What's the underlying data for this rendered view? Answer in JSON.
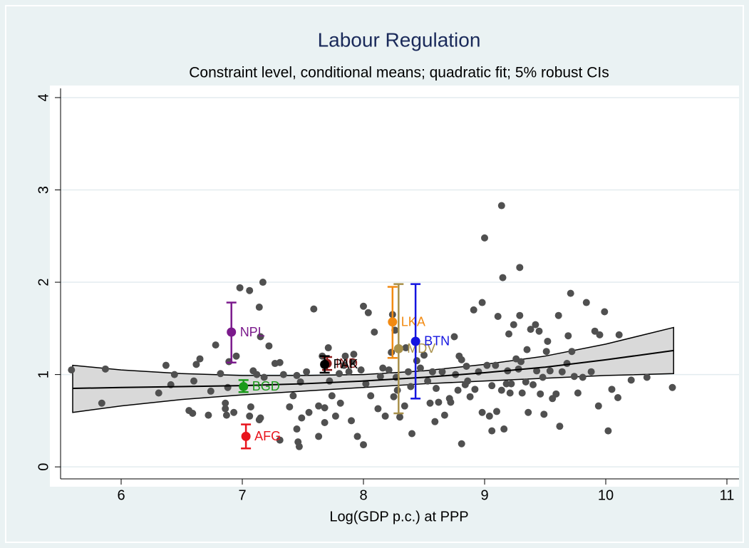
{
  "chart_data": {
    "type": "scatter",
    "title": "Labour Regulation",
    "subtitle": "Constraint level, conditional means; quadratic fit; 5% robust CIs",
    "x_label": "Log(GDP p.c.) at PPP",
    "xlim": [
      5.5,
      11.1
    ],
    "xticks": [
      6,
      7,
      8,
      9,
      10,
      11
    ],
    "ylim": [
      -0.13,
      4.1
    ],
    "yticks": [
      0,
      1,
      2,
      3,
      4
    ],
    "grid": true,
    "color": "#505050",
    "x": [
      5.59,
      5.87,
      5.84,
      6.31,
      6.37,
      6.41,
      6.44,
      6.56,
      6.59,
      6.6,
      6.62,
      6.65,
      6.72,
      6.74,
      6.78,
      6.82,
      6.86,
      6.86,
      6.87,
      6.88,
      6.89,
      6.95,
      6.93,
      6.98,
      7.06,
      7.07,
      7.06,
      7.09,
      7.12,
      7.14,
      7.15,
      7.17,
      7.14,
      7.15,
      7.18,
      7.22,
      7.27,
      7.31,
      7.31,
      7.34,
      7.39,
      7.42,
      7.45,
      7.45,
      7.46,
      7.47,
      7.48,
      7.49,
      7.53,
      7.55,
      7.59,
      7.63,
      7.63,
      7.68,
      7.66,
      7.68,
      7.71,
      7.72,
      7.74,
      7.77,
      7.8,
      7.81,
      7.84,
      7.85,
      7.88,
      7.9,
      7.91,
      7.92,
      7.95,
      7.98,
      8.0,
      8.0,
      8.02,
      8.04,
      8.06,
      8.09,
      8.12,
      8.14,
      8.16,
      8.18,
      8.21,
      8.23,
      8.24,
      8.25,
      8.26,
      8.27,
      8.28,
      8.3,
      8.34,
      8.35,
      8.37,
      8.39,
      8.4,
      8.44,
      8.47,
      8.5,
      8.53,
      8.55,
      8.57,
      8.59,
      8.6,
      8.62,
      8.65,
      8.67,
      8.71,
      8.72,
      8.75,
      8.76,
      8.78,
      8.79,
      8.81,
      8.81,
      8.84,
      8.85,
      8.86,
      8.88,
      8.91,
      8.92,
      8.95,
      8.98,
      8.98,
      9.0,
      9.02,
      9.04,
      9.06,
      9.06,
      9.09,
      9.1,
      9.11,
      9.14,
      9.14,
      9.15,
      9.16,
      9.18,
      9.19,
      9.2,
      9.21,
      9.22,
      9.24,
      9.26,
      9.28,
      9.29,
      9.29,
      9.3,
      9.31,
      9.34,
      9.35,
      9.36,
      9.38,
      9.4,
      9.42,
      9.43,
      9.45,
      9.46,
      9.48,
      9.49,
      9.51,
      9.52,
      9.54,
      9.56,
      9.59,
      9.61,
      9.62,
      9.64,
      9.68,
      9.69,
      9.71,
      9.72,
      9.74,
      9.77,
      9.81,
      9.84,
      9.88,
      9.91,
      9.94,
      9.95,
      9.99,
      10.02,
      10.05,
      10.1,
      10.11,
      10.21,
      10.34,
      10.55
    ],
    "y": [
      1.05,
      1.06,
      0.69,
      0.8,
      1.1,
      0.89,
      1.0,
      0.61,
      0.58,
      0.93,
      1.11,
      1.17,
      0.56,
      0.82,
      1.32,
      1.01,
      0.69,
      0.63,
      0.56,
      0.86,
      1.14,
      1.2,
      0.59,
      1.94,
      1.91,
      0.65,
      0.55,
      1.04,
      1.0,
      1.73,
      1.41,
      2.0,
      0.51,
      0.53,
      0.97,
      1.31,
      1.12,
      0.29,
      1.13,
      1.0,
      0.65,
      0.77,
      0.99,
      0.41,
      0.27,
      0.22,
      0.92,
      0.53,
      1.03,
      0.59,
      1.71,
      0.33,
      0.66,
      0.64,
      1.2,
      0.48,
      1.29,
      0.93,
      0.77,
      0.55,
      1.01,
      0.69,
      1.1,
      1.2,
      1.03,
      0.5,
      1.14,
      1.22,
      0.33,
      1.05,
      1.74,
      0.24,
      0.9,
      1.67,
      0.77,
      1.46,
      0.63,
      0.98,
      1.07,
      0.55,
      1.05,
      1.24,
      1.65,
      0.76,
      1.48,
      0.97,
      0.83,
      0.54,
      0.66,
      1.29,
      1.03,
      0.87,
      0.36,
      1.15,
      1.07,
      1.21,
      0.93,
      0.69,
      1.03,
      0.49,
      0.85,
      0.7,
      1.03,
      0.56,
      0.74,
      0.7,
      1.41,
      1.0,
      0.83,
      1.2,
      0.25,
      1.16,
      0.89,
      1.09,
      0.93,
      0.76,
      1.7,
      0.84,
      1.03,
      1.78,
      0.59,
      2.48,
      1.1,
      0.55,
      0.39,
      0.88,
      1.1,
      0.6,
      1.63,
      0.83,
      2.83,
      2.05,
      0.41,
      0.9,
      1.04,
      1.44,
      0.8,
      0.9,
      1.54,
      1.17,
      1.06,
      2.16,
      1.64,
      1.14,
      0.8,
      0.92,
      1.27,
      0.59,
      1.49,
      0.89,
      1.54,
      1.04,
      1.47,
      0.79,
      0.97,
      0.57,
      1.25,
      1.36,
      1.04,
      0.74,
      0.79,
      1.64,
      0.44,
      1.03,
      1.12,
      1.42,
      1.88,
      1.25,
      0.98,
      0.8,
      0.97,
      1.78,
      1.03,
      1.47,
      0.66,
      1.43,
      1.68,
      0.39,
      0.84,
      0.75,
      1.43,
      0.94,
      0.97,
      0.86
    ],
    "fit": {
      "band_color": "#d9d9d9",
      "x": [
        5.6,
        6,
        6.5,
        7,
        7.5,
        8,
        8.5,
        9,
        9.5,
        10,
        10.56
      ],
      "y": [
        0.85,
        0.86,
        0.87,
        0.88,
        0.9,
        0.93,
        0.97,
        1.02,
        1.08,
        1.16,
        1.26
      ],
      "lower": [
        0.59,
        0.66,
        0.73,
        0.78,
        0.82,
        0.86,
        0.9,
        0.93,
        0.96,
        0.99,
        1.01
      ],
      "upper": [
        1.1,
        1.05,
        1.01,
        0.99,
        0.99,
        1.0,
        1.04,
        1.11,
        1.2,
        1.33,
        1.51
      ]
    },
    "highlights": [
      {
        "name": "NPL",
        "color": "#7b1a8c",
        "x": 6.91,
        "y": 1.46,
        "lower": 1.13,
        "upper": 1.78
      },
      {
        "name": "BGD",
        "color": "#1a9a1a",
        "x": 7.01,
        "y": 0.87,
        "lower": 0.81,
        "upper": 0.94
      },
      {
        "name": "AFG",
        "color": "#e8141c",
        "x": 7.03,
        "y": 0.33,
        "lower": 0.2,
        "upper": 0.46
      },
      {
        "name": "IND",
        "color": "#8b1a1a",
        "x": 7.7,
        "y": 1.12,
        "lower": 1.05,
        "upper": 1.19
      },
      {
        "name": "PAK",
        "color": "#000000",
        "x": 7.68,
        "y": 1.11,
        "lower": 1.02,
        "upper": 1.2
      },
      {
        "name": "LKA",
        "color": "#f28a12",
        "x": 8.24,
        "y": 1.57,
        "lower": 1.18,
        "upper": 1.95
      },
      {
        "name": "MDV",
        "color": "#a8904a",
        "x": 8.29,
        "y": 1.28,
        "lower": 0.58,
        "upper": 1.98
      },
      {
        "name": "BTN",
        "color": "#1414e0",
        "x": 8.43,
        "y": 1.36,
        "lower": 0.74,
        "upper": 1.98
      }
    ]
  }
}
